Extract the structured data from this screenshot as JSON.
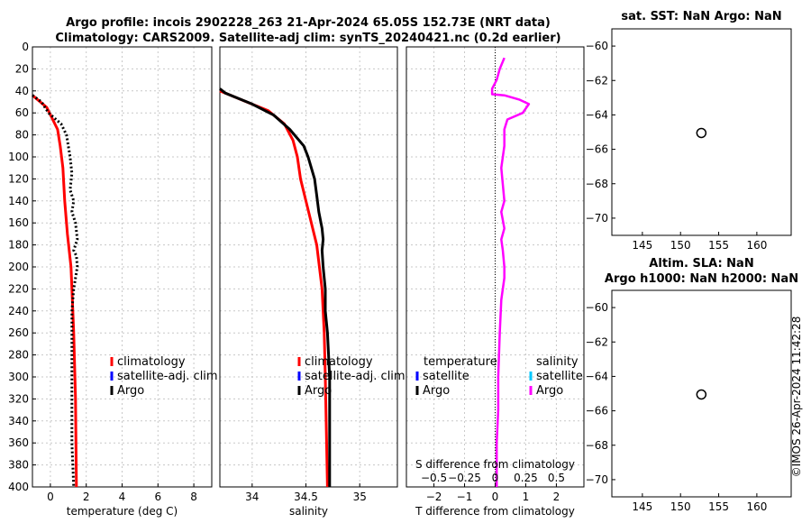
{
  "title_line1": "Argo profile: incois 2902228_263 21-Apr-2024 65.05S 152.73E (NRT data)",
  "title_line2": "Climatology: CARS2009. Satellite-adj clim: synTS_20240421.nc (0.2d earlier)",
  "watermark": "©IMOS 26-Apr-2024 11:42:28",
  "colors": {
    "climatology": "#ff0000",
    "satellite": "#0000ff",
    "argo": "#000000",
    "sat_salinity": "#00c8ff",
    "argo_diff": "#ff00ff"
  },
  "chart_data": [
    {
      "type": "line",
      "id": "temperature",
      "xlabel": "temperature (deg C)",
      "xlim": [
        -1,
        9
      ],
      "xticks": [
        0,
        2,
        4,
        6,
        8
      ],
      "ylim": [
        0,
        400
      ],
      "yticks": [
        0,
        20,
        40,
        60,
        80,
        100,
        120,
        140,
        160,
        180,
        200,
        220,
        240,
        260,
        280,
        300,
        320,
        340,
        360,
        380,
        400
      ],
      "legend": [
        "climatology",
        "satellite-adj. clim",
        "Argo"
      ],
      "series": [
        {
          "name": "climatology",
          "style": "solid",
          "x": [
            -1.0,
            -0.2,
            0.4,
            0.55,
            0.7,
            0.8,
            0.95,
            1.15,
            1.3,
            1.4,
            1.45
          ],
          "y": [
            44,
            55,
            75,
            90,
            110,
            140,
            170,
            200,
            260,
            320,
            400
          ]
        },
        {
          "name": "Argo",
          "style": "dotted",
          "x": [
            -1.0,
            -0.5,
            -0.1,
            0.6,
            0.9,
            1.0,
            1.1,
            1.2,
            1.1,
            1.3,
            1.2,
            1.4,
            1.5,
            1.3,
            1.45,
            1.5,
            1.4,
            1.3,
            1.2,
            1.2,
            1.2,
            1.2,
            1.3
          ],
          "y": [
            44,
            50,
            60,
            70,
            80,
            90,
            100,
            115,
            130,
            140,
            150,
            160,
            175,
            185,
            190,
            200,
            210,
            220,
            240,
            260,
            300,
            360,
            400
          ]
        }
      ]
    },
    {
      "type": "line",
      "id": "salinity",
      "xlabel": "salinity",
      "xlim": [
        33.7,
        35.35
      ],
      "xticks": [
        34,
        34.5,
        35
      ],
      "ylim": [
        0,
        400
      ],
      "legend": [
        "climatology",
        "satellite-adj. clim",
        "Argo"
      ],
      "series": [
        {
          "name": "climatology",
          "x": [
            33.7,
            33.9,
            34.15,
            34.3,
            34.38,
            34.42,
            34.45,
            34.5,
            34.55,
            34.6,
            34.65,
            34.67,
            34.68,
            34.69,
            34.7
          ],
          "y": [
            40,
            48,
            58,
            70,
            85,
            100,
            120,
            140,
            160,
            180,
            220,
            260,
            300,
            350,
            400
          ]
        },
        {
          "name": "Argo",
          "x": [
            33.7,
            33.75,
            34.0,
            34.2,
            34.35,
            34.48,
            34.52,
            34.55,
            34.58,
            34.6,
            34.62,
            34.65,
            34.66,
            34.65,
            34.66,
            34.68,
            34.68,
            34.7,
            34.71,
            34.72,
            34.72,
            34.72,
            34.72
          ],
          "y": [
            38,
            42,
            52,
            62,
            75,
            90,
            100,
            110,
            120,
            135,
            150,
            165,
            175,
            185,
            200,
            220,
            240,
            260,
            280,
            300,
            340,
            370,
            400
          ]
        }
      ]
    },
    {
      "type": "line",
      "id": "differences",
      "xlabel": "T difference from climatology",
      "xlabel_top": "S difference from climatology",
      "xlim": [
        -2.9,
        2.9
      ],
      "xticks": [
        -2,
        -1,
        0,
        1,
        2
      ],
      "s_ticks": [
        "-0.5",
        "-0.25",
        "0",
        "0.25",
        "0.5"
      ],
      "s_tick_values": [
        -2,
        -1,
        0,
        1,
        2
      ],
      "ylim": [
        0,
        400
      ],
      "legend_temperature_title": "temperature",
      "legend_salinity_title": "salinity",
      "legend_temperature": [
        "satellite",
        "Argo"
      ],
      "legend_salinity": [
        "satellite",
        "Argo"
      ],
      "series": [
        {
          "name": "Argo salinity difference",
          "x": [
            0.3,
            0.15,
            0.05,
            -0.1,
            -0.1,
            0.3,
            0.8,
            1.1,
            0.9,
            0.4,
            0.3,
            0.3,
            0.2,
            0.25,
            0.3,
            0.2,
            0.3,
            0.2,
            0.25,
            0.3,
            0.3,
            0.2,
            0.15,
            0.1,
            0.1,
            0.05,
            0.05,
            0.05
          ],
          "y": [
            10,
            20,
            30,
            38,
            43,
            44,
            48,
            52,
            60,
            66,
            75,
            90,
            110,
            125,
            140,
            150,
            165,
            175,
            185,
            200,
            210,
            230,
            260,
            300,
            330,
            360,
            380,
            400
          ]
        }
      ]
    },
    {
      "type": "scatter",
      "id": "sst_map",
      "title": "sat. SST: NaN  Argo: NaN",
      "xlim": [
        141,
        164.5
      ],
      "xticks": [
        145,
        150,
        155,
        160
      ],
      "ylim": [
        -71,
        -59
      ],
      "yticks": [
        -60,
        -62,
        -64,
        -66,
        -68,
        -70
      ],
      "points": [
        {
          "x": 152.73,
          "y": -65.05
        }
      ]
    },
    {
      "type": "scatter",
      "id": "sla_map",
      "title_line1": "Altim. SLA: NaN",
      "title_line2": "Argo h1000: NaN  h2000: NaN",
      "xlim": [
        141,
        164.5
      ],
      "xticks": [
        145,
        150,
        155,
        160
      ],
      "ylim": [
        -71,
        -59
      ],
      "yticks": [
        -60,
        -62,
        -64,
        -66,
        -68,
        -70
      ],
      "points": [
        {
          "x": 152.73,
          "y": -65.05
        }
      ]
    }
  ]
}
